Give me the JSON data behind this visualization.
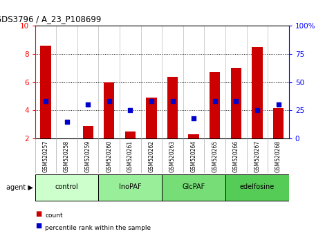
{
  "title": "GDS3796 / A_23_P108699",
  "samples": [
    "GSM520257",
    "GSM520258",
    "GSM520259",
    "GSM520260",
    "GSM520261",
    "GSM520262",
    "GSM520263",
    "GSM520264",
    "GSM520265",
    "GSM520266",
    "GSM520267",
    "GSM520268"
  ],
  "count_values": [
    8.6,
    2.0,
    2.9,
    6.0,
    2.5,
    4.9,
    6.35,
    2.3,
    6.7,
    7.0,
    8.5,
    4.15
  ],
  "percentile_values": [
    33,
    15,
    30,
    33,
    25,
    33,
    33,
    18,
    33,
    33,
    25,
    30
  ],
  "groups": [
    {
      "label": "control",
      "start": 0,
      "end": 3
    },
    {
      "label": "InoPAF",
      "start": 3,
      "end": 6
    },
    {
      "label": "GlcPAF",
      "start": 6,
      "end": 9
    },
    {
      "label": "edelfosine",
      "start": 9,
      "end": 12
    }
  ],
  "group_colors": [
    "#ccffcc",
    "#99ee99",
    "#77dd77",
    "#55cc55"
  ],
  "ylim_left": [
    2,
    10
  ],
  "ylim_right": [
    0,
    100
  ],
  "yticks_left": [
    2,
    4,
    6,
    8,
    10
  ],
  "yticks_right": [
    0,
    25,
    50,
    75,
    100
  ],
  "ytick_labels_right": [
    "0",
    "25",
    "50",
    "75",
    "100%"
  ],
  "bar_color": "#cc0000",
  "percentile_color": "#0000cc",
  "bar_width": 0.5,
  "xtick_bg": "#d8d8d8",
  "legend_items": [
    {
      "label": "count",
      "color": "#cc0000"
    },
    {
      "label": "percentile rank within the sample",
      "color": "#0000cc"
    }
  ],
  "grid_yticks": [
    4,
    6,
    8
  ]
}
